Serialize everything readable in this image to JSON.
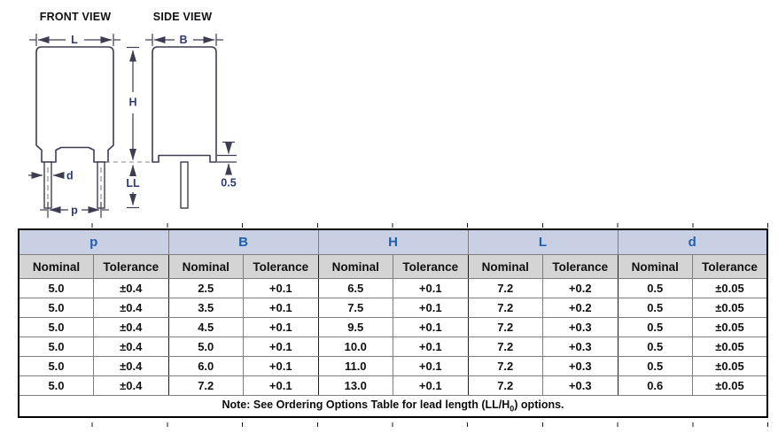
{
  "diagram": {
    "front_view_title": "FRONT VIEW",
    "side_view_title": "SIDE VIEW",
    "labels": {
      "L": "L",
      "B": "B",
      "H": "H",
      "LL": "LL",
      "d": "d",
      "p": "p",
      "standoff": "0.5"
    }
  },
  "table": {
    "groups": [
      {
        "label": "p"
      },
      {
        "label": "B"
      },
      {
        "label": "H"
      },
      {
        "label": "L"
      },
      {
        "label": "d"
      }
    ],
    "subheaders": [
      "Nominal",
      "Tolerance"
    ],
    "rows": [
      [
        "5.0",
        "±0.4",
        "2.5",
        "+0.1",
        "6.5",
        "+0.1",
        "7.2",
        "+0.2",
        "0.5",
        "±0.05"
      ],
      [
        "5.0",
        "±0.4",
        "3.5",
        "+0.1",
        "7.5",
        "+0.1",
        "7.2",
        "+0.2",
        "0.5",
        "±0.05"
      ],
      [
        "5.0",
        "±0.4",
        "4.5",
        "+0.1",
        "9.5",
        "+0.1",
        "7.2",
        "+0.3",
        "0.5",
        "±0.05"
      ],
      [
        "5.0",
        "±0.4",
        "5.0",
        "+0.1",
        "10.0",
        "+0.1",
        "7.2",
        "+0.3",
        "0.5",
        "±0.05"
      ],
      [
        "5.0",
        "±0.4",
        "6.0",
        "+0.1",
        "11.0",
        "+0.1",
        "7.2",
        "+0.3",
        "0.5",
        "±0.05"
      ],
      [
        "5.0",
        "±0.4",
        "7.2",
        "+0.1",
        "13.0",
        "+0.1",
        "7.2",
        "+0.3",
        "0.6",
        "±0.05"
      ]
    ],
    "note": {
      "prefix": "Note: See Ordering Options Table for lead length (LL/H",
      "subscript": "0",
      "suffix": ") options."
    }
  },
  "colors": {
    "header_bg": "#c9d0e3",
    "header_text": "#1e5fae",
    "subheader_bg": "#d4d4d4",
    "table_border": "#000000",
    "diagram_line": "#3d3d52",
    "diagram_label": "#2e3a77"
  }
}
